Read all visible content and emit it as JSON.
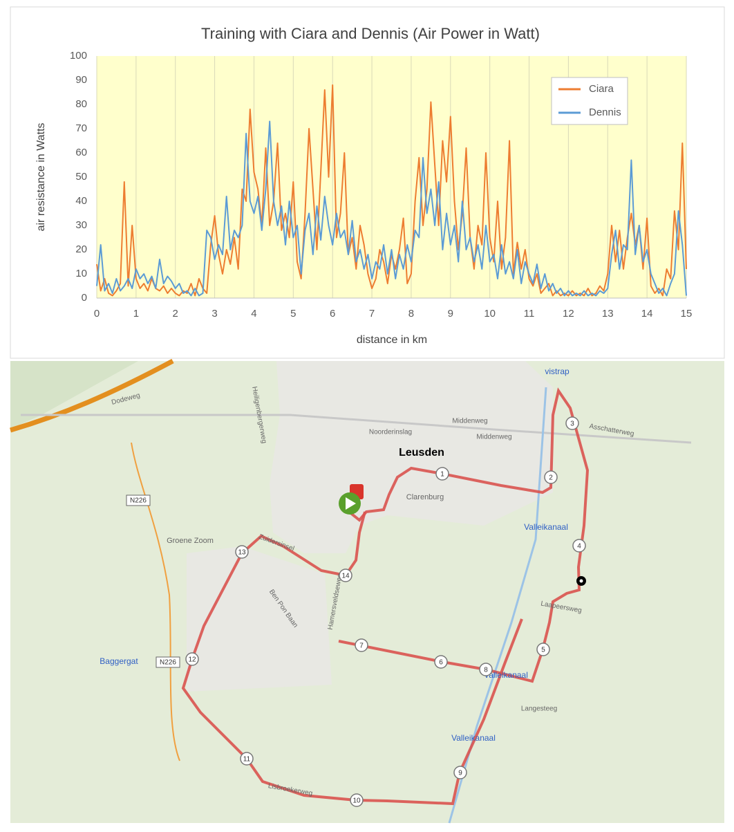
{
  "chart_data": {
    "type": "line",
    "title": "Training with Ciara and Dennis (Air Power in Watt)",
    "x_label": "distance in km",
    "y_label": "air resistance in Watts",
    "x": [
      0,
      0.1,
      0.2,
      0.3,
      0.4,
      0.5,
      0.6,
      0.7,
      0.8,
      0.9,
      1,
      1.1,
      1.2,
      1.3,
      1.4,
      1.5,
      1.6,
      1.7,
      1.8,
      1.9,
      2,
      2.1,
      2.2,
      2.3,
      2.4,
      2.5,
      2.6,
      2.7,
      2.8,
      2.9,
      3,
      3.1,
      3.2,
      3.3,
      3.4,
      3.5,
      3.6,
      3.7,
      3.8,
      3.9,
      4,
      4.1,
      4.2,
      4.3,
      4.4,
      4.5,
      4.6,
      4.7,
      4.8,
      4.9,
      5,
      5.1,
      5.2,
      5.3,
      5.4,
      5.5,
      5.6,
      5.7,
      5.8,
      5.9,
      6,
      6.1,
      6.2,
      6.3,
      6.4,
      6.5,
      6.6,
      6.7,
      6.8,
      6.9,
      7,
      7.1,
      7.2,
      7.3,
      7.4,
      7.5,
      7.6,
      7.7,
      7.8,
      7.9,
      8,
      8.1,
      8.2,
      8.3,
      8.4,
      8.5,
      8.6,
      8.7,
      8.8,
      8.9,
      9,
      9.1,
      9.2,
      9.3,
      9.4,
      9.5,
      9.6,
      9.7,
      9.8,
      9.9,
      10,
      10.1,
      10.2,
      10.3,
      10.4,
      10.5,
      10.6,
      10.7,
      10.8,
      10.9,
      11,
      11.1,
      11.2,
      11.3,
      11.4,
      11.5,
      11.6,
      11.7,
      11.8,
      11.9,
      12,
      12.1,
      12.2,
      12.3,
      12.4,
      12.5,
      12.6,
      12.7,
      12.8,
      12.9,
      13,
      13.1,
      13.2,
      13.3,
      13.4,
      13.5,
      13.6,
      13.7,
      13.8,
      13.9,
      14,
      14.1,
      14.2,
      14.3,
      14.4,
      14.5,
      14.6,
      14.7,
      14.8,
      14.9,
      15
    ],
    "series": [
      {
        "name": "Ciara",
        "color": "#ed7d31",
        "values": [
          14,
          3,
          8,
          2,
          1,
          3,
          6,
          48,
          5,
          30,
          8,
          4,
          6,
          3,
          8,
          4,
          3,
          5,
          2,
          4,
          2,
          1,
          3,
          2,
          6,
          1,
          8,
          4,
          2,
          22,
          34,
          18,
          10,
          20,
          14,
          25,
          12,
          45,
          40,
          78,
          52,
          45,
          30,
          62,
          30,
          40,
          64,
          28,
          35,
          25,
          48,
          15,
          8,
          35,
          70,
          45,
          20,
          52,
          86,
          50,
          88,
          25,
          35,
          60,
          18,
          25,
          12,
          30,
          22,
          10,
          4,
          8,
          20,
          15,
          6,
          18,
          12,
          20,
          33,
          6,
          10,
          40,
          58,
          30,
          45,
          81,
          55,
          30,
          65,
          48,
          75,
          40,
          20,
          35,
          62,
          25,
          12,
          30,
          22,
          60,
          25,
          15,
          40,
          12,
          25,
          65,
          10,
          23,
          12,
          20,
          8,
          5,
          10,
          2,
          4,
          6,
          1,
          3,
          1,
          2,
          1,
          3,
          1,
          2,
          1,
          4,
          1,
          2,
          5,
          3,
          10,
          30,
          15,
          28,
          12,
          25,
          35,
          22,
          30,
          12,
          33,
          5,
          2,
          4,
          1,
          12,
          8,
          36,
          20,
          64,
          12
        ]
      },
      {
        "name": "Dennis",
        "color": "#5b9bd5",
        "values": [
          5,
          22,
          3,
          6,
          2,
          8,
          3,
          5,
          8,
          4,
          12,
          8,
          10,
          6,
          9,
          4,
          16,
          6,
          9,
          7,
          4,
          6,
          2,
          3,
          1,
          4,
          1,
          2,
          28,
          25,
          16,
          22,
          18,
          42,
          20,
          28,
          25,
          30,
          68,
          40,
          35,
          42,
          28,
          45,
          73,
          40,
          30,
          38,
          22,
          40,
          25,
          30,
          10,
          28,
          35,
          18,
          38,
          24,
          42,
          30,
          22,
          35,
          25,
          28,
          18,
          32,
          15,
          20,
          12,
          18,
          8,
          15,
          12,
          22,
          10,
          20,
          8,
          18,
          12,
          22,
          15,
          28,
          25,
          58,
          35,
          45,
          30,
          48,
          20,
          35,
          22,
          30,
          15,
          40,
          20,
          25,
          15,
          22,
          12,
          30,
          15,
          18,
          8,
          22,
          10,
          15,
          8,
          20,
          6,
          15,
          10,
          6,
          14,
          4,
          10,
          3,
          6,
          2,
          4,
          1,
          3,
          1,
          2,
          1,
          3,
          1,
          2,
          1,
          3,
          2,
          4,
          18,
          28,
          12,
          22,
          20,
          57,
          18,
          30,
          15,
          20,
          10,
          6,
          2,
          4,
          1,
          6,
          10,
          36,
          22,
          1
        ]
      }
    ],
    "xlim": [
      0,
      15
    ],
    "xticks": [
      0,
      1,
      2,
      3,
      4,
      5,
      6,
      7,
      8,
      9,
      10,
      11,
      12,
      13,
      14,
      15
    ],
    "ylim": [
      0,
      100
    ],
    "yticks": [
      0,
      10,
      20,
      30,
      40,
      50,
      60,
      70,
      80,
      90,
      100
    ],
    "grid": true,
    "legend": "upper right"
  },
  "map": {
    "labels": [
      "Leusden",
      "Valleikanaal",
      "Valleikanaal",
      "Valleikanaal",
      "Baggergat",
      "Groene Zoom",
      "N226",
      "N226",
      "vistrap",
      "Noorderinslag",
      "Middenweg",
      "Middenweg",
      "Clarenburg",
      "Asschatterweg",
      "Laapeersweg",
      "Langesteeg",
      "Hamersveldseweg",
      "Ben Pon Baan",
      "Lisbroekerweg",
      "Dodeweg",
      "Zuidersinsel",
      "Heiligenbergerweg"
    ],
    "markers": [
      "1",
      "2",
      "3",
      "4",
      "5",
      "6",
      "7",
      "8",
      "9",
      "10",
      "11",
      "12",
      "13",
      "14"
    ]
  }
}
